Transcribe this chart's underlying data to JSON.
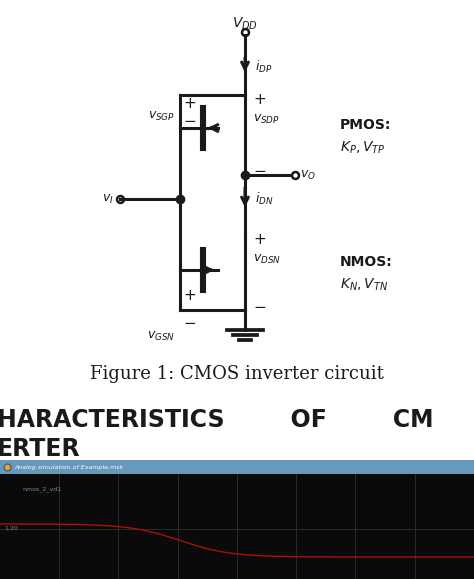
{
  "bg_color": "#ffffff",
  "fig_caption": "Figure 1: CMOS inverter circuit",
  "section_line1": "HARACTERISTICS        OF        CM",
  "section_line2": "ERTER",
  "sim_title": "Analog simulation of Example.msk",
  "sim_label": "nmos_2_vd1",
  "sim_y_tick": "1.20",
  "lc": "#1a1a1a",
  "lw": 2.2,
  "sim_header_color": "#6699bb",
  "sim_plot_color": "#0a0a0a",
  "sim_grid_color": "#2a2a2a",
  "sim_wave_color": "#aa1100",
  "section_fontsize": 17,
  "caption_fontsize": 13
}
